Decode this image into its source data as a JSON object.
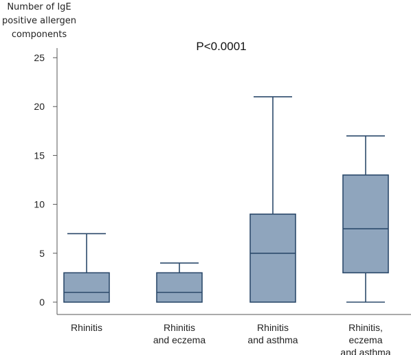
{
  "chart_data": {
    "type": "box",
    "ylabel": [
      "Number of IgE",
      "positive allergen",
      "components"
    ],
    "annotation": "P<0.0001",
    "ylim": [
      0,
      25
    ],
    "yticks": [
      0,
      5,
      10,
      15,
      20,
      25
    ],
    "categories": [
      [
        "Rhinitis"
      ],
      [
        "Rhinitis",
        "and eczema"
      ],
      [
        "Rhinitis",
        "and asthma"
      ],
      [
        "Rhinitis,",
        "eczema",
        "and asthma"
      ]
    ],
    "boxes": [
      {
        "whisker_low": 0,
        "q1": 0,
        "median": 1,
        "q3": 3,
        "whisker_high": 7
      },
      {
        "whisker_low": 0,
        "q1": 0,
        "median": 1,
        "q3": 3,
        "whisker_high": 4
      },
      {
        "whisker_low": 0,
        "q1": 0,
        "median": 5,
        "q3": 9,
        "whisker_high": 21
      },
      {
        "whisker_low": 0,
        "q1": 3,
        "median": 7.5,
        "q3": 13,
        "whisker_high": 17
      }
    ],
    "colors": {
      "box_fill": "#8fa5bd",
      "box_stroke": "#2c4a6b",
      "axis": "#555555"
    },
    "grid": false
  }
}
